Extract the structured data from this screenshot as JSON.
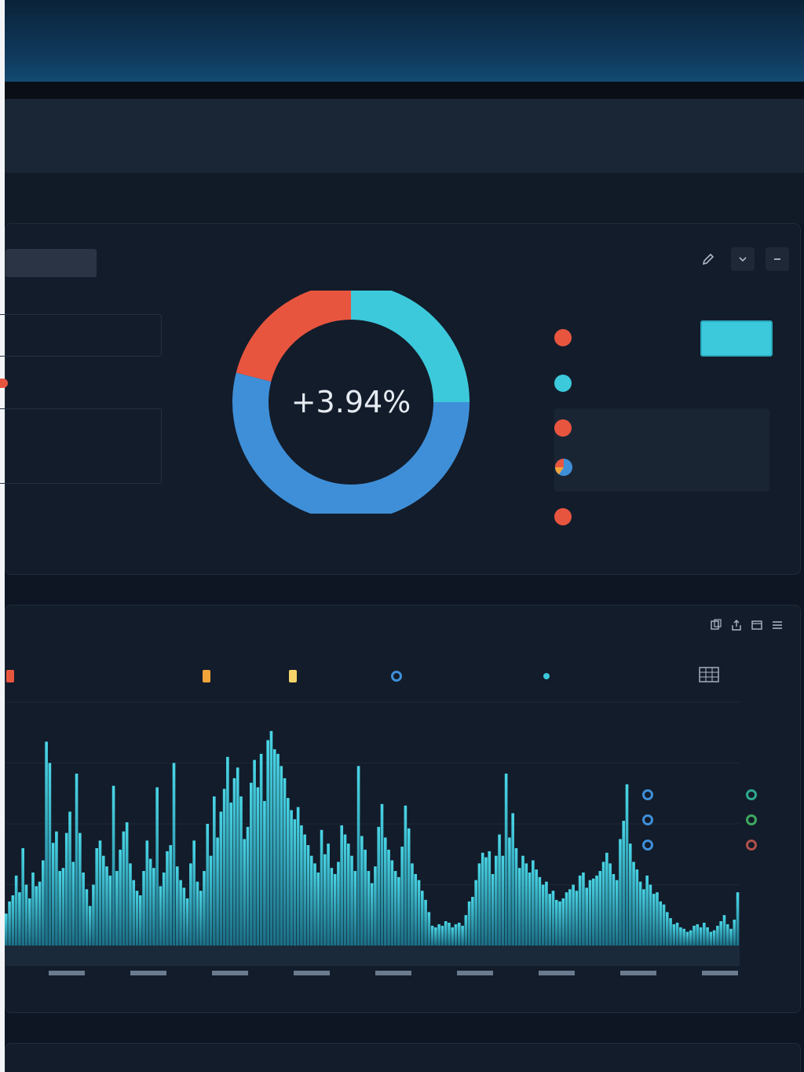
{
  "donut": {
    "center_label": "+3.94%",
    "segments": [
      {
        "color": "#3cc9dc",
        "value": 25
      },
      {
        "color": "#3f8fd8",
        "value": 54
      },
      {
        "color": "#e8553f",
        "value": 21
      }
    ]
  },
  "summary_panel": {
    "actions": [
      "edit-icon",
      "minimize-icon",
      "collapse-icon"
    ]
  },
  "chart_panel": {
    "actions": [
      "copy-icon",
      "export-icon",
      "window-icon",
      "menu-icon"
    ]
  },
  "bottom_panel": {
    "actions": [
      "more-icon"
    ]
  },
  "colors": {
    "background": "#0e1623",
    "panel": "#131c2a",
    "accent_cyan": "#3cc9dc",
    "accent_blue": "#3f8fd8",
    "accent_red": "#e8553f",
    "bar_cyan": "#2fb3c9"
  },
  "chart_data": {
    "type": "bar",
    "ylim": [
      0,
      320
    ],
    "grid": true,
    "values": [
      42,
      58,
      66,
      92,
      70,
      128,
      80,
      62,
      96,
      78,
      84,
      112,
      268,
      240,
      135,
      150,
      98,
      102,
      148,
      176,
      110,
      226,
      148,
      96,
      74,
      52,
      80,
      128,
      138,
      118,
      104,
      92,
      210,
      98,
      126,
      150,
      162,
      108,
      86,
      72,
      66,
      98,
      138,
      114,
      102,
      208,
      78,
      96,
      124,
      132,
      240,
      104,
      86,
      76,
      62,
      108,
      138,
      84,
      72,
      98,
      160,
      118,
      196,
      142,
      176,
      206,
      248,
      188,
      220,
      234,
      196,
      140,
      156,
      214,
      244,
      208,
      252,
      190,
      270,
      282,
      258,
      252,
      236,
      220,
      194,
      178,
      166,
      182,
      158,
      146,
      132,
      118,
      108,
      96,
      152,
      120,
      134,
      102,
      94,
      110,
      158,
      146,
      134,
      118,
      98,
      236,
      144,
      126,
      98,
      82,
      104,
      156,
      186,
      142,
      126,
      112,
      98,
      90,
      130,
      184,
      154,
      108,
      94,
      86,
      72,
      60,
      44,
      26,
      24,
      28,
      26,
      32,
      30,
      24,
      28,
      30,
      26,
      40,
      58,
      64,
      86,
      108,
      122,
      116,
      124,
      94,
      118,
      146,
      118,
      226,
      142,
      174,
      128,
      102,
      118,
      108,
      96,
      112,
      100,
      90,
      80,
      84,
      68,
      72,
      60,
      58,
      62,
      70,
      74,
      80,
      72,
      92,
      96,
      76,
      86,
      88,
      92,
      98,
      110,
      122,
      108,
      94,
      86,
      140,
      164,
      212,
      134,
      110,
      100,
      84,
      74,
      92,
      80,
      68,
      70,
      58,
      54,
      44,
      36,
      28,
      30,
      24,
      22,
      18,
      20,
      26,
      28,
      24,
      30,
      24,
      18,
      20,
      26,
      32,
      40,
      28,
      22,
      34,
      70
    ]
  }
}
